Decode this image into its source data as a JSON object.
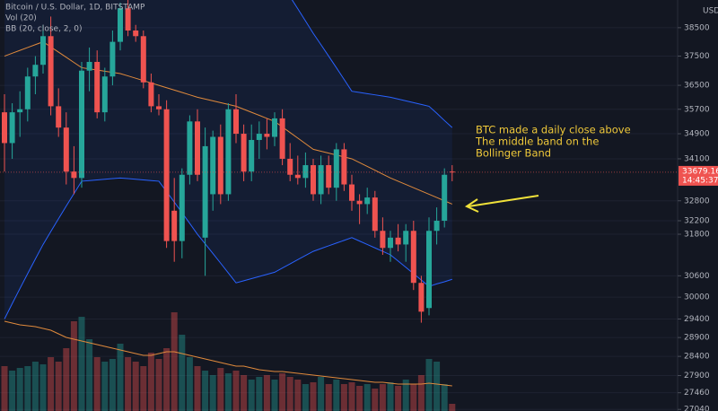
{
  "chart_data": {
    "type": "candlestick",
    "title": "Bitcoin / U.S. Dollar, 1D, BITSTAMP",
    "volume_label": "Vol (20)",
    "bb_label": "BB (20, close, 2, 0)",
    "currency": "USD",
    "annotation": [
      "BTC made a daily close above",
      "The middle band on the",
      "Bollinger Band"
    ],
    "countdown": "14:45:37",
    "last_price": 33679.16,
    "log_scale": true,
    "grid": true,
    "up_color": "#26a69a",
    "down_color": "#ef5350",
    "bb_color": "#2962ff",
    "middle_color": "#e08a3c",
    "volume_ma_color": "#e08a3c",
    "ylim": [
      27000,
      39500
    ],
    "yticks": [
      38500,
      37500,
      36500,
      35700,
      34900,
      34100,
      32800,
      32200,
      31800,
      30600,
      30000,
      29400,
      28900,
      28400,
      27900,
      27460,
      27040
    ],
    "open": [
      35600,
      34600,
      35600,
      35700,
      36800,
      37200,
      38200,
      35800,
      35100,
      33700,
      33500,
      37000,
      37300,
      35600,
      36800,
      38000,
      39200,
      38400,
      38200,
      36600,
      35800,
      35700,
      32500,
      31600,
      33600,
      35300,
      31700,
      33000,
      34800,
      33000,
      35700,
      34900,
      33700,
      34700,
      34900,
      34800,
      35400,
      34100,
      33600,
      33500,
      33900,
      33000,
      33900,
      33200,
      34400,
      33300,
      32800,
      32700,
      32900,
      31900,
      31400,
      31700,
      31500,
      31900,
      30400,
      29700,
      31900,
      32200,
      33700
    ],
    "high": [
      36200,
      35900,
      36300,
      37100,
      37500,
      38600,
      38900,
      36400,
      35600,
      34500,
      37300,
      37800,
      37700,
      37100,
      38400,
      39400,
      39500,
      38600,
      38400,
      36900,
      36200,
      36000,
      33500,
      33800,
      35500,
      35700,
      35100,
      35000,
      35200,
      35900,
      36200,
      35200,
      35200,
      35300,
      35400,
      35600,
      35700,
      34600,
      34200,
      34300,
      34100,
      34200,
      34200,
      34600,
      34600,
      33600,
      33000,
      33200,
      33100,
      32300,
      31900,
      32100,
      32100,
      32200,
      30600,
      32300,
      32600,
      33800,
      33900
    ],
    "low": [
      33700,
      34100,
      34800,
      35300,
      36200,
      36900,
      35500,
      34800,
      33300,
      33000,
      33200,
      36300,
      35400,
      35300,
      36500,
      37700,
      38200,
      38000,
      36400,
      35600,
      35500,
      31400,
      31000,
      31100,
      33300,
      33400,
      30600,
      32500,
      32700,
      32800,
      34600,
      33400,
      33400,
      34100,
      34400,
      34500,
      33900,
      33400,
      33300,
      33200,
      32800,
      32700,
      33000,
      32800,
      33100,
      32500,
      32100,
      32400,
      31700,
      31200,
      31000,
      31300,
      31000,
      30200,
      29300,
      29500,
      31500,
      32000,
      33400
    ],
    "close": [
      34600,
      35600,
      35700,
      36800,
      37200,
      38200,
      35800,
      35100,
      33700,
      33500,
      37000,
      37300,
      35600,
      36800,
      38000,
      39200,
      38400,
      38200,
      36600,
      35800,
      35700,
      31600,
      31600,
      33600,
      35300,
      33600,
      34500,
      34800,
      33000,
      35700,
      34900,
      33700,
      34700,
      34900,
      34800,
      35400,
      34100,
      33600,
      33500,
      33900,
      33000,
      33900,
      33200,
      34400,
      33300,
      32800,
      32700,
      32900,
      31900,
      31400,
      31700,
      31500,
      31900,
      30400,
      29600,
      31900,
      32200,
      33600,
      33679.16
    ],
    "bb_upper": [
      40500,
      40500,
      40500,
      40500,
      40500,
      40500,
      40500,
      40500,
      40500,
      40500,
      40500,
      40500,
      40500,
      40500,
      40500,
      40500,
      40500,
      40500,
      40500,
      40500,
      40500,
      40500,
      40500,
      40500,
      40500,
      40500,
      40500,
      40500,
      40500,
      40500,
      40500,
      40500,
      40500,
      40500,
      40500,
      40500,
      40060,
      39620,
      39180,
      38740,
      38300,
      37900,
      37500,
      37100,
      36700,
      36300,
      36260,
      36220,
      36180,
      36140,
      36100,
      36040,
      35980,
      35920,
      35860,
      35800,
      35570,
      35330,
      35100
    ],
    "bb_middle": [
      37500,
      37600,
      37700,
      37800,
      37900,
      38000,
      37820,
      37640,
      37460,
      37280,
      37100,
      37060,
      37020,
      36980,
      36940,
      36900,
      36820,
      36740,
      36660,
      36580,
      36500,
      36420,
      36340,
      36260,
      36180,
      36100,
      36040,
      35980,
      35920,
      35860,
      35800,
      35700,
      35600,
      35500,
      35400,
      35300,
      35120,
      34940,
      34760,
      34580,
      34400,
      34340,
      34280,
      34220,
      34160,
      34100,
      33980,
      33860,
      33740,
      33620,
      33500,
      33400,
      33300,
      33200,
      33100,
      33000,
      32900,
      32800,
      32700
    ],
    "bb_lower": [
      29400,
      29820,
      30240,
      30660,
      31080,
      31500,
      31880,
      32260,
      32640,
      33020,
      33400,
      33420,
      33440,
      33460,
      33480,
      33500,
      33480,
      33460,
      33440,
      33420,
      33400,
      33080,
      32760,
      32440,
      32120,
      31800,
      31520,
      31240,
      30960,
      30680,
      30400,
      30460,
      30520,
      30580,
      30640,
      30700,
      30820,
      30940,
      31060,
      31180,
      31300,
      31380,
      31460,
      31540,
      31620,
      31700,
      31600,
      31500,
      31400,
      31300,
      31200,
      31020,
      30840,
      30660,
      30480,
      30300,
      30370,
      30430,
      30500
    ],
    "vlim": [
      0,
      458
    ],
    "volume": [
      50,
      45,
      48,
      50,
      55,
      52,
      60,
      55,
      70,
      100,
      105,
      80,
      60,
      55,
      58,
      75,
      60,
      55,
      50,
      65,
      58,
      70,
      110,
      85,
      60,
      50,
      45,
      40,
      48,
      42,
      45,
      40,
      35,
      38,
      40,
      35,
      42,
      38,
      35,
      30,
      32,
      38,
      30,
      35,
      30,
      32,
      28,
      30,
      25,
      30,
      32,
      28,
      35,
      30,
      40,
      58,
      55,
      30,
      8
    ],
    "volume_ma": [
      100,
      98,
      96,
      95,
      94,
      92,
      90,
      86,
      82,
      80,
      78,
      76,
      74,
      72,
      70,
      68,
      66,
      64,
      62,
      62,
      64,
      66,
      66,
      64,
      62,
      60,
      58,
      56,
      54,
      52,
      50,
      50,
      48,
      46,
      45,
      44,
      44,
      43,
      42,
      41,
      40,
      39,
      38,
      37,
      36,
      35,
      34,
      33,
      32,
      32,
      31,
      30,
      30,
      30,
      30,
      31,
      30,
      29,
      28
    ]
  }
}
